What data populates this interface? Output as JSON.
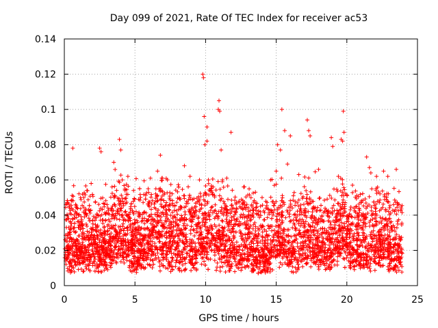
{
  "chart_data": {
    "type": "scatter",
    "title": "Day 099 of 2021, Rate Of TEC Index for receiver ac53",
    "xlabel": "GPS time / hours",
    "ylabel": "ROTI / TECUs",
    "xlim": [
      0,
      25
    ],
    "ylim": [
      0,
      0.14
    ],
    "xticks": [
      0,
      5,
      10,
      15,
      20,
      25
    ],
    "xtick_labels": [
      "0",
      "5",
      "10",
      "15",
      "20",
      "25"
    ],
    "yticks": [
      0,
      0.02,
      0.04,
      0.06,
      0.08,
      0.1,
      0.12,
      0.14
    ],
    "ytick_labels": [
      "0",
      "0.02",
      "0.04",
      "0.06",
      "0.08",
      "0.1",
      "0.12",
      "0.14"
    ],
    "grid": true,
    "marker": "+",
    "color": "#ff0000",
    "series": [
      {
        "x": [
          0.2,
          0.5,
          0.6,
          1.0,
          1.6,
          1.9,
          2.5,
          2.6,
          3.5,
          3.9,
          4.0,
          4.1,
          4.5,
          4.9,
          6.1,
          6.6,
          6.8,
          7.3,
          8.5,
          8.9,
          9.8,
          9.85,
          9.9,
          9.95,
          10.1,
          10.1,
          10.2,
          10.9,
          10.95,
          11.0,
          11.1,
          11.2,
          11.5,
          11.8,
          12.7,
          14.0,
          14.6,
          15.0,
          15.1,
          15.3,
          15.4,
          15.6,
          15.8,
          16.0,
          16.6,
          17.2,
          17.3,
          17.4,
          18.0,
          18.9,
          19.0,
          19.4,
          19.6,
          19.7,
          19.75,
          19.8,
          20.4,
          21.4,
          21.6,
          21.7,
          22.1,
          22.6,
          22.9,
          23.5
        ],
        "y": [
          0.027,
          0.025,
          0.078,
          0.04,
          0.054,
          0.058,
          0.078,
          0.076,
          0.07,
          0.083,
          0.077,
          0.06,
          0.062,
          0.054,
          0.061,
          0.065,
          0.074,
          0.06,
          0.068,
          0.062,
          0.12,
          0.118,
          0.096,
          0.08,
          0.09,
          0.082,
          0.06,
          0.1,
          0.105,
          0.099,
          0.077,
          0.06,
          0.061,
          0.087,
          0.056,
          0.05,
          0.06,
          0.065,
          0.08,
          0.077,
          0.1,
          0.088,
          0.069,
          0.085,
          0.063,
          0.094,
          0.088,
          0.085,
          0.066,
          0.084,
          0.079,
          0.062,
          0.083,
          0.082,
          0.099,
          0.087,
          0.057,
          0.073,
          0.067,
          0.064,
          0.062,
          0.065,
          0.062,
          0.066
        ],
        "bulk_density": "dense band of points between 0.005 and 0.05 across 0–24 hours"
      }
    ]
  }
}
